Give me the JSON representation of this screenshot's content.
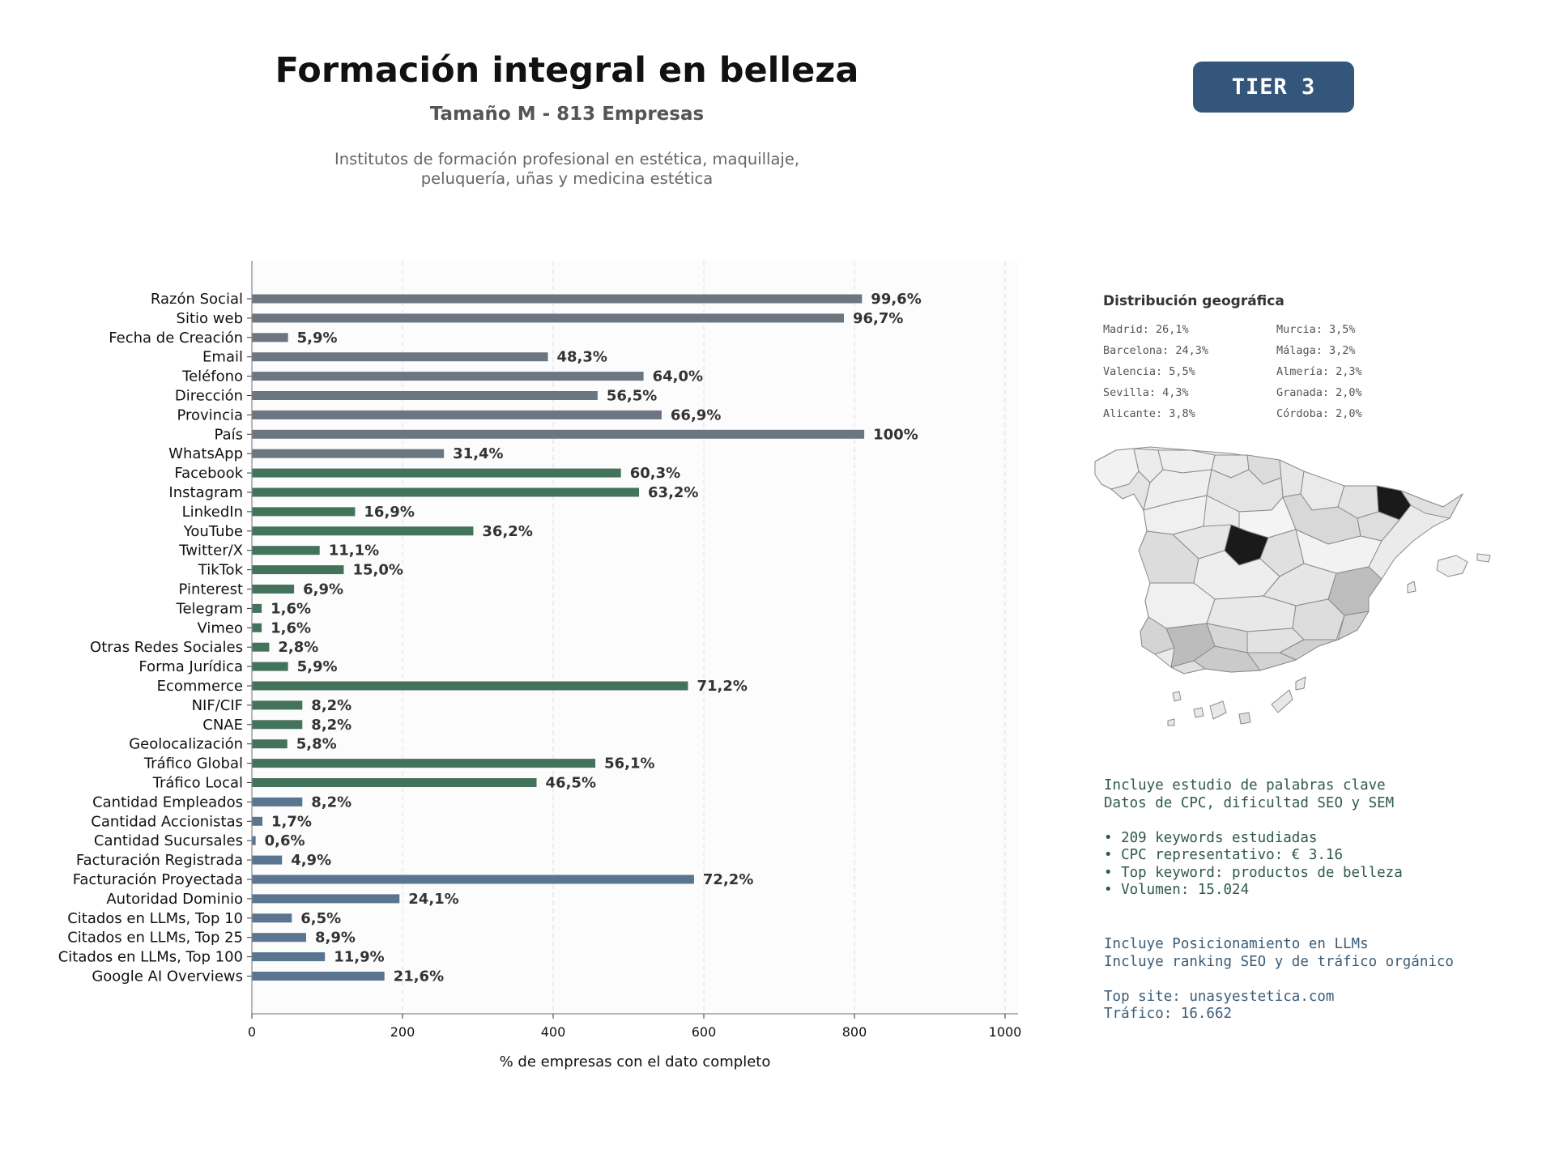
{
  "header": {
    "title": "Formación integral en belleza",
    "subtitle": "Tamaño M - 813 Empresas",
    "description_line1": "Institutos de formación profesional en estética, maquillaje,",
    "description_line2": "peluquería, uñas y medicina estética",
    "tier_badge": "TIER 3"
  },
  "colors": {
    "basic": "#6b7681",
    "social": "#44735c",
    "business": "#5a7590",
    "tier_bg": "#34567a"
  },
  "chart_data": {
    "type": "bar",
    "orientation": "horizontal",
    "xlabel": "% de empresas con el dato completo",
    "xlim": [
      0,
      1000
    ],
    "xticks": [
      0,
      200,
      400,
      600,
      800,
      1000
    ],
    "grid": "vertical dashed",
    "categories": [
      "Razón Social",
      "Sitio web",
      "Fecha de Creación",
      "Email",
      "Teléfono",
      "Dirección",
      "Provincia",
      "País",
      "WhatsApp",
      "Facebook",
      "Instagram",
      "LinkedIn",
      "YouTube",
      "Twitter/X",
      "TikTok",
      "Pinterest",
      "Telegram",
      "Vimeo",
      "Otras Redes Sociales",
      "Forma Jurídica",
      "Ecommerce",
      "NIF/CIF",
      "CNAE",
      "Geolocalización",
      "Tráfico Global",
      "Tráfico Local",
      "Cantidad Empleados",
      "Cantidad Accionistas",
      "Cantidad Sucursales",
      "Facturación Registrada",
      "Facturación Proyectada",
      "Autoridad Dominio",
      "Citados en LLMs, Top 10",
      "Citados en LLMs, Top 25",
      "Citados en LLMs, Top 100",
      "Google AI Overviews"
    ],
    "values": [
      810,
      786,
      48,
      393,
      520,
      459,
      544,
      813,
      255,
      490,
      514,
      137,
      294,
      90,
      122,
      56,
      13,
      13,
      23,
      48,
      579,
      67,
      67,
      47,
      456,
      378,
      67,
      14,
      5,
      40,
      587,
      196,
      53,
      72,
      97,
      176
    ],
    "labels": [
      "99,6%",
      "96,7%",
      "5,9%",
      "48,3%",
      "64,0%",
      "56,5%",
      "66,9%",
      "100%",
      "31,4%",
      "60,3%",
      "63,2%",
      "16,9%",
      "36,2%",
      "11,1%",
      "15,0%",
      "6,9%",
      "1,6%",
      "1,6%",
      "2,8%",
      "5,9%",
      "71,2%",
      "8,2%",
      "8,2%",
      "5,8%",
      "56,1%",
      "46,5%",
      "8,2%",
      "1,7%",
      "0,6%",
      "4,9%",
      "72,2%",
      "24,1%",
      "6,5%",
      "8,9%",
      "11,9%",
      "21,6%"
    ],
    "groups": [
      "basic",
      "basic",
      "basic",
      "basic",
      "basic",
      "basic",
      "basic",
      "basic",
      "basic",
      "social",
      "social",
      "social",
      "social",
      "social",
      "social",
      "social",
      "social",
      "social",
      "social",
      "social",
      "social",
      "social",
      "social",
      "social",
      "social",
      "social",
      "business",
      "business",
      "business",
      "business",
      "business",
      "business",
      "business",
      "business",
      "business",
      "business"
    ]
  },
  "geo": {
    "title": "Distribución geográfica",
    "items": [
      {
        "name": "Madrid",
        "value": "26,1%",
        "label": "Madrid: 26,1%"
      },
      {
        "name": "Barcelona",
        "value": "24,3%",
        "label": "Barcelona: 24,3%"
      },
      {
        "name": "Valencia",
        "value": "5,5%",
        "label": "Valencia: 5,5%"
      },
      {
        "name": "Sevilla",
        "value": "4,3%",
        "label": "Sevilla: 4,3%"
      },
      {
        "name": "Alicante",
        "value": "3,8%",
        "label": "Alicante: 3,8%"
      },
      {
        "name": "Murcia",
        "value": "3,5%",
        "label": "Murcia: 3,5%"
      },
      {
        "name": "Málaga",
        "value": "3,2%",
        "label": "Málaga: 3,2%"
      },
      {
        "name": "Almería",
        "value": "2,3%",
        "label": "Almería: 2,3%"
      },
      {
        "name": "Granada",
        "value": "2,0%",
        "label": "Granada: 2,0%"
      },
      {
        "name": "Córdoba",
        "value": "2,0%",
        "label": "Córdoba: 2,0%"
      }
    ]
  },
  "info": {
    "keywords": {
      "line1": "Incluye estudio de palabras clave",
      "line2": "Datos de CPC, dificultad SEO y SEM",
      "bullet1": "• 209 keywords estudiadas",
      "bullet2": "• CPC representativo: € 3.16",
      "bullet3": "• Top keyword: productos de belleza",
      "bullet4": "• Volumen: 15.024"
    },
    "llm": {
      "line1": "Incluye Posicionamiento en LLMs",
      "line2": "Incluye ranking SEO y de tráfico orgánico",
      "top_site": "Top site: unasyestetica.com",
      "traffic": "Tráfico: 16.662"
    }
  }
}
